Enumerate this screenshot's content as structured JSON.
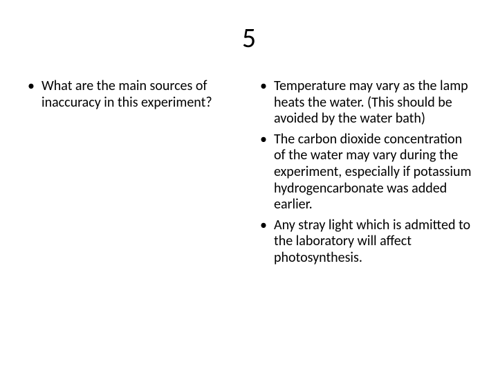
{
  "title": "5",
  "left": {
    "items": [
      "What are the main sources of inaccuracy in this experiment?"
    ]
  },
  "right": {
    "items": [
      "Temperature may vary as the lamp heats the water. (This should be avoided by the water bath)",
      "The carbon dioxide concentration of the water may vary during the experiment, especially if potassium hydrogencarbonate was added earlier.",
      "Any stray light which is admitted to the laboratory will affect photosynthesis."
    ]
  },
  "bullet_char": "•",
  "colors": {
    "text": "#000000",
    "background": "#ffffff"
  },
  "fontsize": {
    "title": 40,
    "body": 20
  }
}
